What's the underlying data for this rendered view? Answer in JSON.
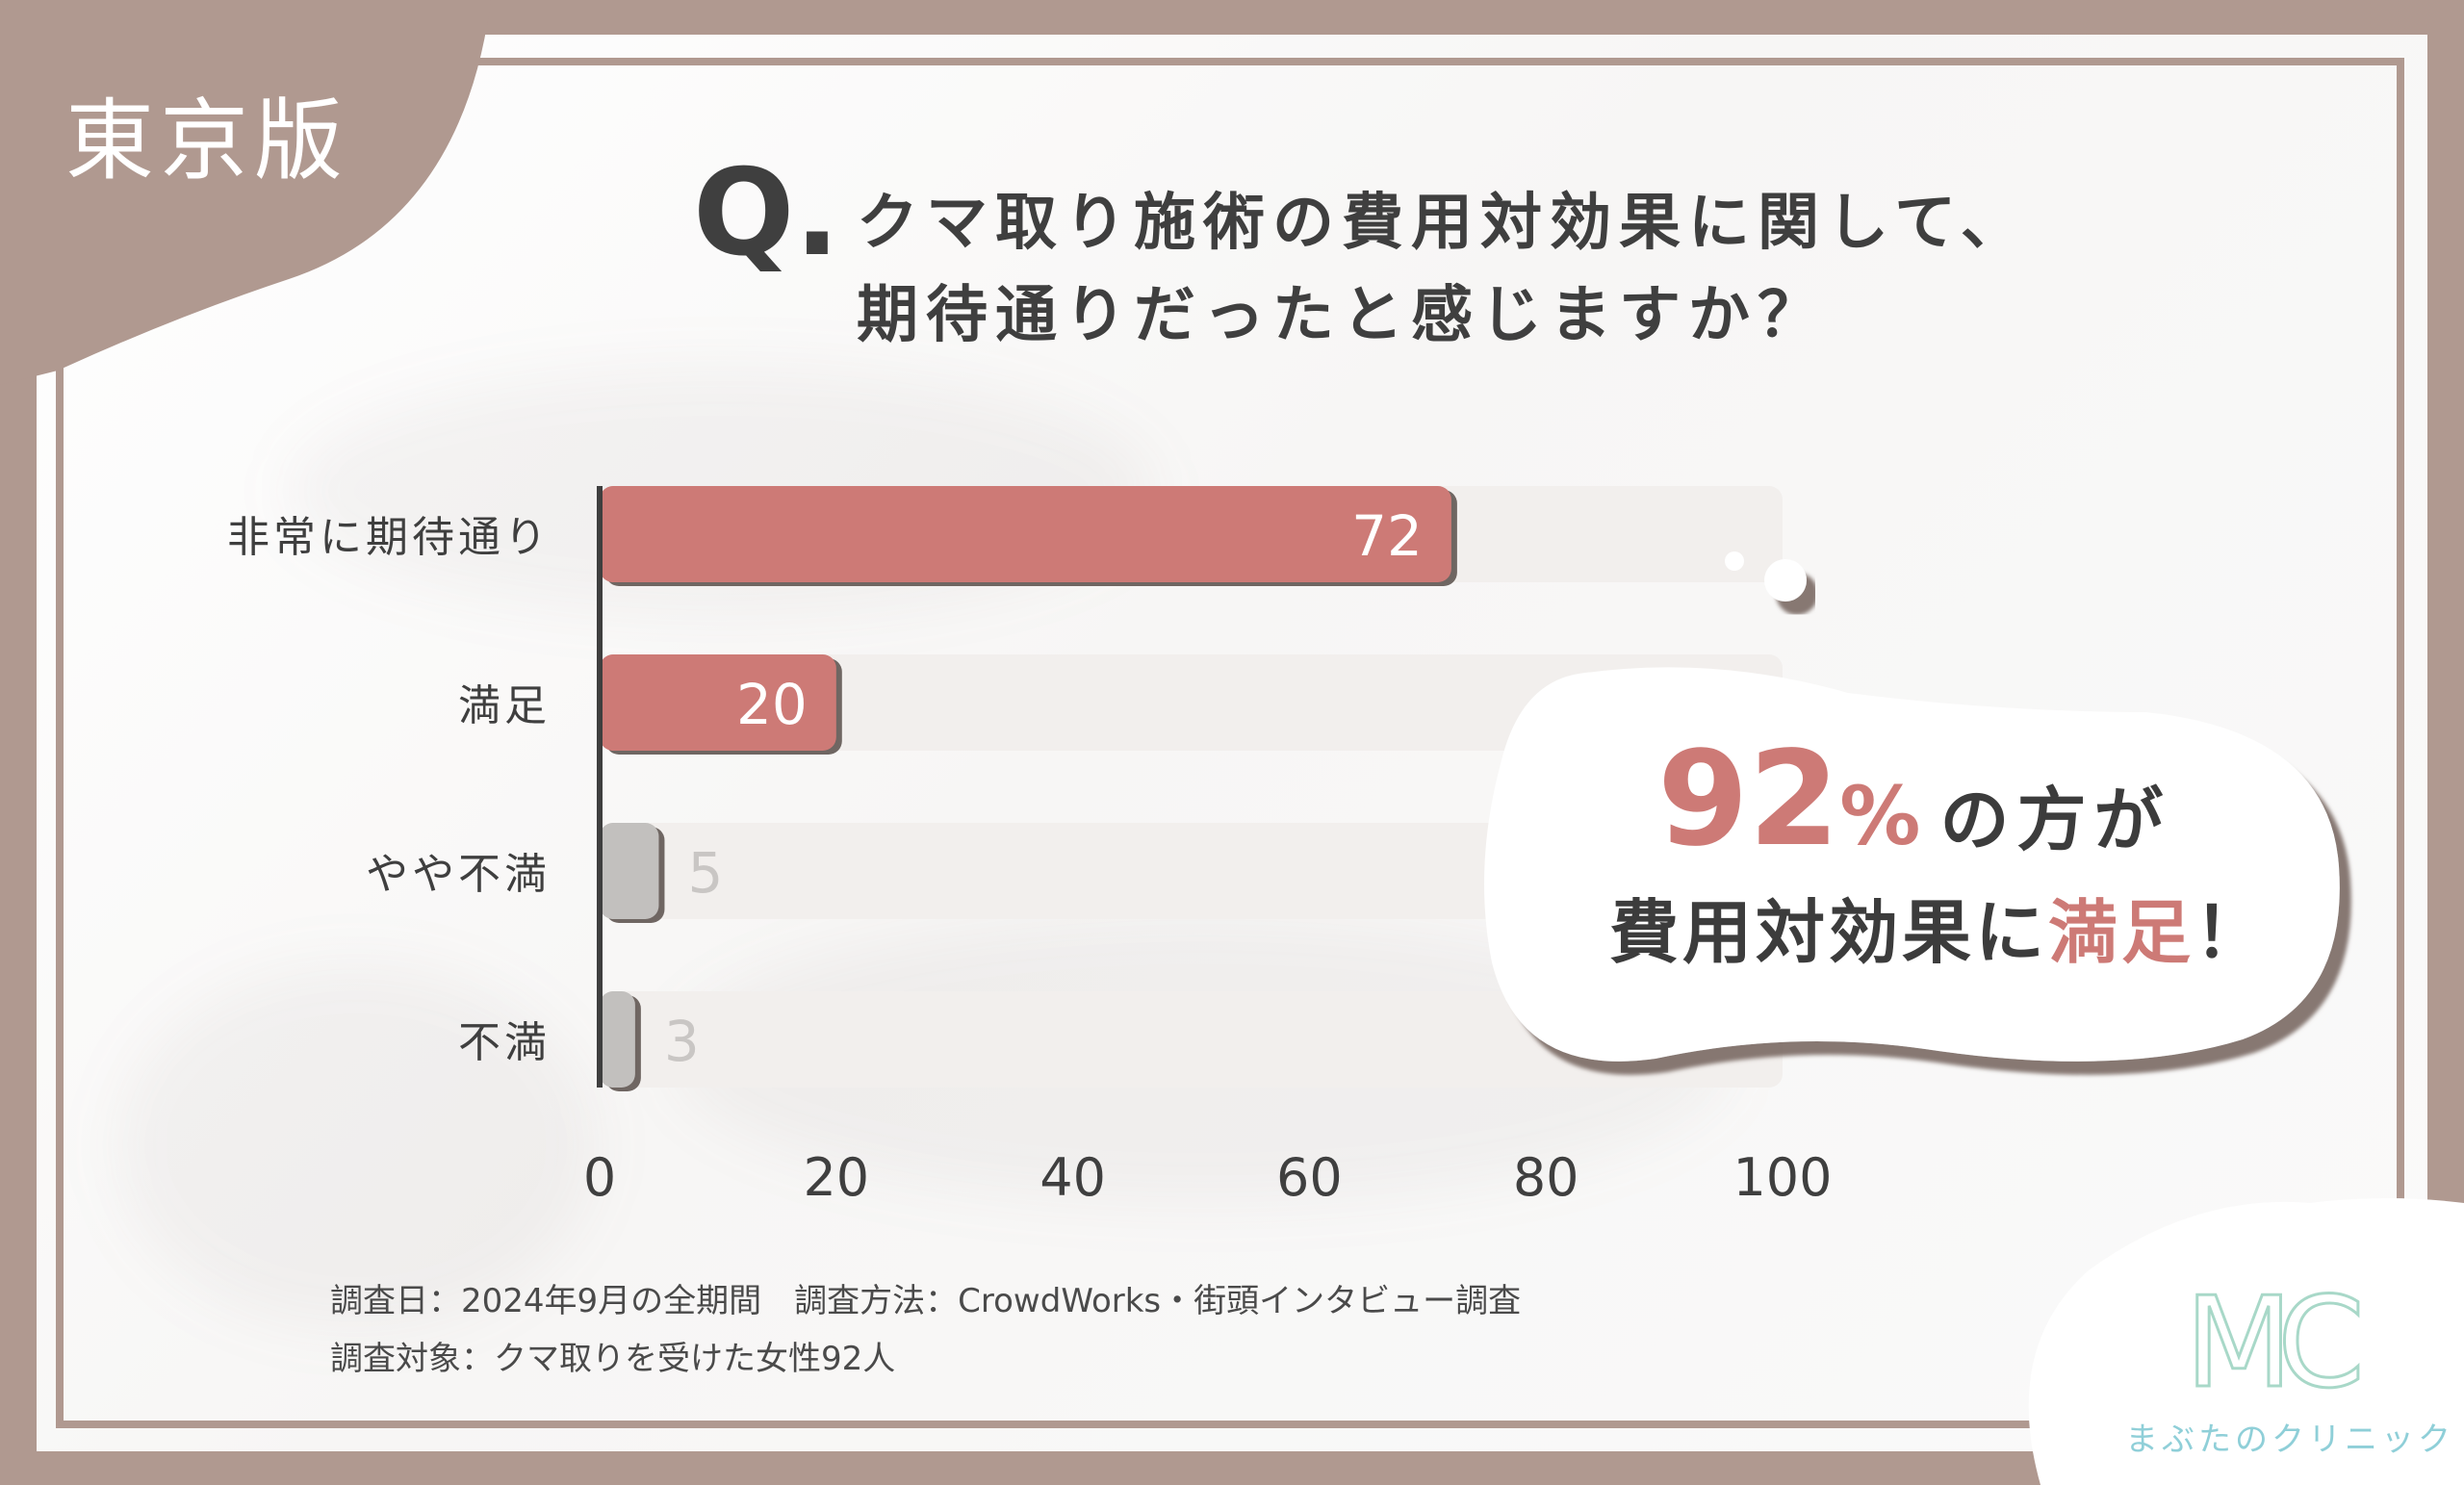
{
  "badge": "東京版",
  "question": {
    "q_mark": "Q.",
    "line1": "クマ取り施術の費用対効果に関して、",
    "line2": "期待通りだったと感じますか？"
  },
  "chart_data": {
    "type": "bar",
    "orientation": "horizontal",
    "categories": [
      "非常に期待通り",
      "満足",
      "やや不満",
      "不満"
    ],
    "values": [
      72,
      20,
      5,
      3
    ],
    "value_labels": [
      "72",
      "20",
      "5",
      "3"
    ],
    "xlim": [
      0,
      100
    ],
    "x_ticks": [
      "0",
      "20",
      "40",
      "60",
      "80",
      "100"
    ],
    "grid": false,
    "colors": {
      "positive": "#cd7a76",
      "negative": "#c2c0be",
      "track": "#f2efed"
    }
  },
  "callout": {
    "percent": "92",
    "percent_unit": "%",
    "text1": "の方が",
    "text2_pre": "費用対効果に",
    "text2_highlight": "満足",
    "text2_post": "！"
  },
  "footnote": {
    "line1": "調査日：2024年9月の全期間　調査方法：CrowdWorks・街頭インタビュー調査",
    "line2": "調査対象：クマ取りを受けた女性92人"
  },
  "logo": {
    "mark": "MC",
    "name": "まぶたのクリニック",
    "color": "#8fcfd8"
  },
  "theme": {
    "frame": "#b09990",
    "text": "#3f3f3f"
  }
}
